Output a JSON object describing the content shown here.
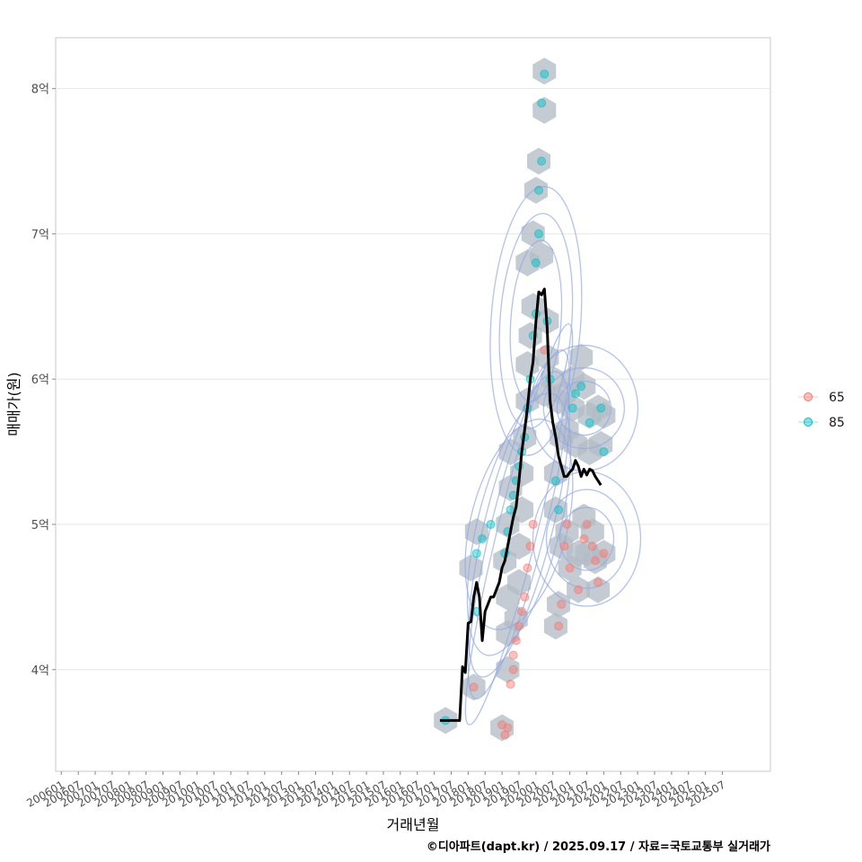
{
  "chart_data": {
    "type": "scatter",
    "xlabel": "거래년월",
    "ylabel": "매매가(원)",
    "caption": "©디아파트(dapt.kr) / 2025.09.17 / 자료=국토교통부 실거래가",
    "x_range": [
      "2005-11",
      "2026-12"
    ],
    "ylim": [
      3.3,
      8.35
    ],
    "y_ticks": [
      {
        "value": 4,
        "label": "4억"
      },
      {
        "value": 5,
        "label": "5억"
      },
      {
        "value": 6,
        "label": "6억"
      },
      {
        "value": 7,
        "label": "7억"
      },
      {
        "value": 8,
        "label": "8억"
      }
    ],
    "x_ticks": [
      "200601",
      "200607",
      "200701",
      "200707",
      "200801",
      "200807",
      "200901",
      "200907",
      "201001",
      "201007",
      "201101",
      "201107",
      "201201",
      "201207",
      "201301",
      "201307",
      "201401",
      "201407",
      "201501",
      "201507",
      "201601",
      "201607",
      "201701",
      "201707",
      "201801",
      "201807",
      "201901",
      "201907",
      "202001",
      "202007",
      "202101",
      "202107",
      "202201",
      "202207",
      "202301",
      "202307",
      "202401",
      "202407",
      "202501",
      "202507"
    ],
    "grid": true,
    "legend_position": "right",
    "colors": {
      "65": "#f8766d",
      "85": "#00bfc4",
      "trend": "#000000",
      "hex": "#b4bcc6",
      "contour": "#93a8e6"
    },
    "legend": [
      {
        "label": "65",
        "color": "#f8766d"
      },
      {
        "label": "85",
        "color": "#00bfc4"
      }
    ],
    "trend_line": [
      {
        "x": "2017-03",
        "y": 3.65
      },
      {
        "x": "2017-06",
        "y": 3.65
      },
      {
        "x": "2017-09",
        "y": 3.65
      },
      {
        "x": "2017-10",
        "y": 3.65
      },
      {
        "x": "2017-11",
        "y": 4.02
      },
      {
        "x": "2017-12",
        "y": 3.98
      },
      {
        "x": "2018-01",
        "y": 4.32
      },
      {
        "x": "2018-02",
        "y": 4.33
      },
      {
        "x": "2018-03",
        "y": 4.5
      },
      {
        "x": "2018-04",
        "y": 4.6
      },
      {
        "x": "2018-05",
        "y": 4.5
      },
      {
        "x": "2018-06",
        "y": 4.2
      },
      {
        "x": "2018-07",
        "y": 4.4
      },
      {
        "x": "2018-08",
        "y": 4.45
      },
      {
        "x": "2018-09",
        "y": 4.5
      },
      {
        "x": "2018-10",
        "y": 4.5
      },
      {
        "x": "2018-11",
        "y": 4.55
      },
      {
        "x": "2018-12",
        "y": 4.6
      },
      {
        "x": "2019-01",
        "y": 4.7
      },
      {
        "x": "2019-02",
        "y": 4.75
      },
      {
        "x": "2019-03",
        "y": 4.85
      },
      {
        "x": "2019-04",
        "y": 4.95
      },
      {
        "x": "2019-05",
        "y": 5.05
      },
      {
        "x": "2019-06",
        "y": 5.12
      },
      {
        "x": "2019-07",
        "y": 5.3
      },
      {
        "x": "2019-08",
        "y": 5.5
      },
      {
        "x": "2019-09",
        "y": 5.65
      },
      {
        "x": "2019-10",
        "y": 5.8
      },
      {
        "x": "2019-11",
        "y": 6.0
      },
      {
        "x": "2019-12",
        "y": 6.12
      },
      {
        "x": "2020-01",
        "y": 6.4
      },
      {
        "x": "2020-02",
        "y": 6.6
      },
      {
        "x": "2020-03",
        "y": 6.58
      },
      {
        "x": "2020-04",
        "y": 6.62
      },
      {
        "x": "2020-05",
        "y": 6.35
      },
      {
        "x": "2020-06",
        "y": 5.85
      },
      {
        "x": "2020-07",
        "y": 5.7
      },
      {
        "x": "2020-08",
        "y": 5.6
      },
      {
        "x": "2020-09",
        "y": 5.47
      },
      {
        "x": "2020-10",
        "y": 5.4
      },
      {
        "x": "2020-11",
        "y": 5.33
      },
      {
        "x": "2020-12",
        "y": 5.33
      },
      {
        "x": "2021-01",
        "y": 5.36
      },
      {
        "x": "2021-02",
        "y": 5.38
      },
      {
        "x": "2021-03",
        "y": 5.44
      },
      {
        "x": "2021-04",
        "y": 5.4
      },
      {
        "x": "2021-05",
        "y": 5.33
      },
      {
        "x": "2021-06",
        "y": 5.38
      },
      {
        "x": "2021-07",
        "y": 5.34
      },
      {
        "x": "2021-08",
        "y": 5.38
      },
      {
        "x": "2021-09",
        "y": 5.37
      },
      {
        "x": "2021-10",
        "y": 5.33
      },
      {
        "x": "2021-11",
        "y": 5.3
      },
      {
        "x": "2021-12",
        "y": 5.27
      }
    ],
    "points": [
      {
        "x": "2017-05",
        "y": 3.65,
        "g": "85"
      },
      {
        "x": "2018-03",
        "y": 3.88,
        "g": "65"
      },
      {
        "x": "2018-04",
        "y": 4.4,
        "g": "85"
      },
      {
        "x": "2018-04",
        "y": 4.8,
        "g": "85"
      },
      {
        "x": "2018-06",
        "y": 4.9,
        "g": "85"
      },
      {
        "x": "2018-09",
        "y": 5.0,
        "g": "85"
      },
      {
        "x": "2019-01",
        "y": 3.62,
        "g": "65"
      },
      {
        "x": "2019-02",
        "y": 3.55,
        "g": "65"
      },
      {
        "x": "2019-03",
        "y": 3.6,
        "g": "65"
      },
      {
        "x": "2019-04",
        "y": 3.9,
        "g": "65"
      },
      {
        "x": "2019-05",
        "y": 4.0,
        "g": "65"
      },
      {
        "x": "2019-05",
        "y": 4.1,
        "g": "65"
      },
      {
        "x": "2019-06",
        "y": 4.2,
        "g": "65"
      },
      {
        "x": "2019-07",
        "y": 4.3,
        "g": "65"
      },
      {
        "x": "2019-08",
        "y": 4.4,
        "g": "65"
      },
      {
        "x": "2019-09",
        "y": 4.5,
        "g": "65"
      },
      {
        "x": "2019-10",
        "y": 4.7,
        "g": "65"
      },
      {
        "x": "2019-11",
        "y": 4.85,
        "g": "65"
      },
      {
        "x": "2019-12",
        "y": 5.0,
        "g": "65"
      },
      {
        "x": "2019-02",
        "y": 4.8,
        "g": "85"
      },
      {
        "x": "2019-03",
        "y": 4.95,
        "g": "85"
      },
      {
        "x": "2019-04",
        "y": 5.1,
        "g": "85"
      },
      {
        "x": "2019-05",
        "y": 5.2,
        "g": "85"
      },
      {
        "x": "2019-06",
        "y": 5.3,
        "g": "85"
      },
      {
        "x": "2019-07",
        "y": 5.4,
        "g": "85"
      },
      {
        "x": "2019-08",
        "y": 5.5,
        "g": "85"
      },
      {
        "x": "2019-09",
        "y": 5.6,
        "g": "85"
      },
      {
        "x": "2019-10",
        "y": 5.8,
        "g": "85"
      },
      {
        "x": "2019-11",
        "y": 6.0,
        "g": "85"
      },
      {
        "x": "2019-12",
        "y": 6.3,
        "g": "85"
      },
      {
        "x": "2020-01",
        "y": 6.45,
        "g": "85"
      },
      {
        "x": "2020-01",
        "y": 6.8,
        "g": "85"
      },
      {
        "x": "2020-02",
        "y": 7.0,
        "g": "85"
      },
      {
        "x": "2020-02",
        "y": 7.3,
        "g": "85"
      },
      {
        "x": "2020-03",
        "y": 7.5,
        "g": "85"
      },
      {
        "x": "2020-03",
        "y": 7.9,
        "g": "85"
      },
      {
        "x": "2020-04",
        "y": 8.1,
        "g": "85"
      },
      {
        "x": "2020-04",
        "y": 6.2,
        "g": "65"
      },
      {
        "x": "2020-05",
        "y": 6.4,
        "g": "85"
      },
      {
        "x": "2020-06",
        "y": 6.0,
        "g": "85"
      },
      {
        "x": "2020-08",
        "y": 5.3,
        "g": "85"
      },
      {
        "x": "2020-09",
        "y": 5.1,
        "g": "85"
      },
      {
        "x": "2020-09",
        "y": 4.3,
        "g": "65"
      },
      {
        "x": "2020-10",
        "y": 4.45,
        "g": "65"
      },
      {
        "x": "2020-11",
        "y": 4.85,
        "g": "65"
      },
      {
        "x": "2020-12",
        "y": 5.0,
        "g": "65"
      },
      {
        "x": "2021-01",
        "y": 4.7,
        "g": "65"
      },
      {
        "x": "2021-02",
        "y": 5.8,
        "g": "85"
      },
      {
        "x": "2021-03",
        "y": 5.9,
        "g": "85"
      },
      {
        "x": "2021-04",
        "y": 4.55,
        "g": "65"
      },
      {
        "x": "2021-05",
        "y": 5.95,
        "g": "85"
      },
      {
        "x": "2021-06",
        "y": 4.9,
        "g": "65"
      },
      {
        "x": "2021-07",
        "y": 5.0,
        "g": "65"
      },
      {
        "x": "2021-08",
        "y": 5.7,
        "g": "85"
      },
      {
        "x": "2021-09",
        "y": 4.85,
        "g": "65"
      },
      {
        "x": "2021-10",
        "y": 4.75,
        "g": "65"
      },
      {
        "x": "2021-11",
        "y": 4.6,
        "g": "65"
      },
      {
        "x": "2021-12",
        "y": 5.8,
        "g": "85"
      },
      {
        "x": "2022-01",
        "y": 4.8,
        "g": "65"
      },
      {
        "x": "2022-01",
        "y": 5.5,
        "g": "85"
      }
    ],
    "hexbins": [
      {
        "x": "2017-05",
        "y": 3.65
      },
      {
        "x": "2018-03",
        "y": 3.88
      },
      {
        "x": "2018-04",
        "y": 4.95
      },
      {
        "x": "2018-02",
        "y": 4.7
      },
      {
        "x": "2019-01",
        "y": 3.6
      },
      {
        "x": "2019-03",
        "y": 4.0
      },
      {
        "x": "2019-03",
        "y": 4.25
      },
      {
        "x": "2019-03",
        "y": 4.5
      },
      {
        "x": "2019-02",
        "y": 4.75
      },
      {
        "x": "2019-03",
        "y": 5.0
      },
      {
        "x": "2019-04",
        "y": 5.25
      },
      {
        "x": "2019-04",
        "y": 5.5
      },
      {
        "x": "2019-06",
        "y": 4.35
      },
      {
        "x": "2019-07",
        "y": 4.6
      },
      {
        "x": "2019-07",
        "y": 4.85
      },
      {
        "x": "2019-08",
        "y": 5.1
      },
      {
        "x": "2019-08",
        "y": 5.35
      },
      {
        "x": "2019-09",
        "y": 5.6
      },
      {
        "x": "2019-10",
        "y": 5.85
      },
      {
        "x": "2019-10",
        "y": 6.1
      },
      {
        "x": "2019-11",
        "y": 6.3
      },
      {
        "x": "2019-12",
        "y": 6.5
      },
      {
        "x": "2019-10",
        "y": 6.8
      },
      {
        "x": "2019-12",
        "y": 7.0
      },
      {
        "x": "2020-01",
        "y": 7.3
      },
      {
        "x": "2020-02",
        "y": 7.5
      },
      {
        "x": "2020-04",
        "y": 7.85
      },
      {
        "x": "2020-04",
        "y": 8.12
      },
      {
        "x": "2020-03",
        "y": 6.85
      },
      {
        "x": "2020-05",
        "y": 6.4
      },
      {
        "x": "2020-05",
        "y": 6.15
      },
      {
        "x": "2020-04",
        "y": 5.9
      },
      {
        "x": "2020-07",
        "y": 6.0
      },
      {
        "x": "2020-08",
        "y": 5.35
      },
      {
        "x": "2020-08",
        "y": 5.1
      },
      {
        "x": "2020-09",
        "y": 4.45
      },
      {
        "x": "2020-08",
        "y": 4.3
      },
      {
        "x": "2020-09",
        "y": 5.85
      },
      {
        "x": "2020-10",
        "y": 5.6
      },
      {
        "x": "2020-10",
        "y": 4.85
      },
      {
        "x": "2020-11",
        "y": 5.9
      },
      {
        "x": "2020-12",
        "y": 5.65
      },
      {
        "x": "2020-12",
        "y": 4.95
      },
      {
        "x": "2021-01",
        "y": 4.7
      },
      {
        "x": "2021-02",
        "y": 6.0
      },
      {
        "x": "2021-02",
        "y": 5.8
      },
      {
        "x": "2021-03",
        "y": 5.55
      },
      {
        "x": "2021-04",
        "y": 4.8
      },
      {
        "x": "2021-04",
        "y": 4.55
      },
      {
        "x": "2021-05",
        "y": 6.15
      },
      {
        "x": "2021-06",
        "y": 5.95
      },
      {
        "x": "2021-06",
        "y": 5.05
      },
      {
        "x": "2021-07",
        "y": 4.8
      },
      {
        "x": "2021-08",
        "y": 5.75
      },
      {
        "x": "2021-08",
        "y": 5.5
      },
      {
        "x": "2021-09",
        "y": 4.95
      },
      {
        "x": "2021-10",
        "y": 4.75
      },
      {
        "x": "2021-11",
        "y": 4.55
      },
      {
        "x": "2021-11",
        "y": 5.8
      },
      {
        "x": "2021-12",
        "y": 5.55
      },
      {
        "x": "2022-01",
        "y": 4.8
      },
      {
        "x": "2022-01",
        "y": 5.75
      }
    ]
  }
}
